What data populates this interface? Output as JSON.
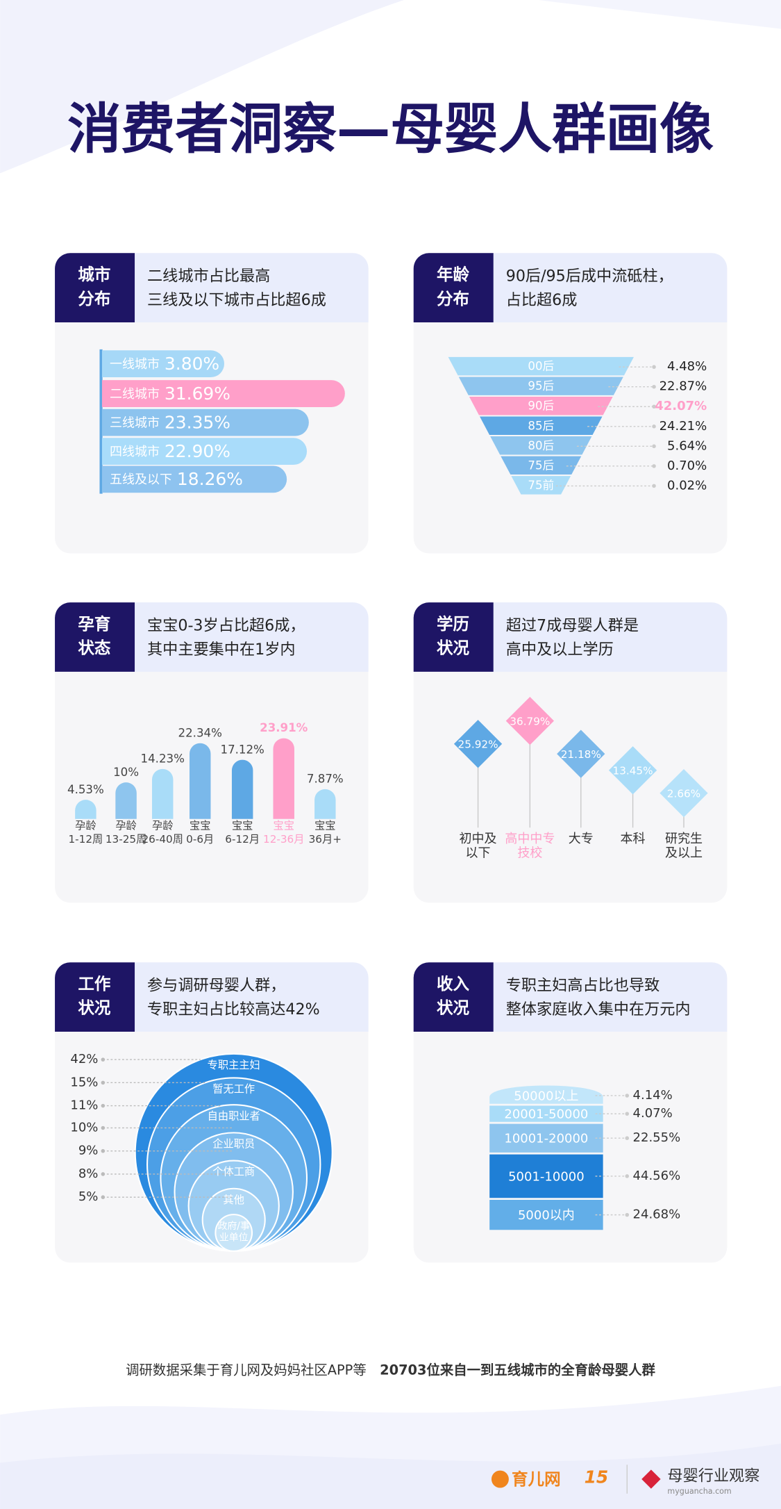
{
  "title": "消费者洞察—母婴人群画像",
  "chart_data": [
    {
      "type": "hbar",
      "tab": "城市\n分布",
      "headline": "二线城市占比最高\n三线及以下城市占比超6成",
      "categories": [
        "一线城市",
        "二线城市",
        "三线城市",
        "四线城市",
        "五线及以下"
      ],
      "values": [
        3.8,
        31.69,
        23.35,
        22.9,
        18.26
      ],
      "value_labels": [
        "3.80%",
        "31.69%",
        "23.35%",
        "22.90%",
        "18.26%"
      ],
      "colors": [
        "#a6d8f7",
        "#ff9fc9",
        "#8cc3ee",
        "#a9dcfa",
        "#8ec3ef"
      ]
    },
    {
      "type": "funnel",
      "tab": "年龄\n分布",
      "headline": "90后/95后成中流砥柱，\n占比超6成",
      "categories": [
        "00后",
        "95后",
        "90后",
        "85后",
        "80后",
        "75后",
        "75前"
      ],
      "values": [
        4.48,
        22.87,
        42.07,
        24.21,
        5.64,
        0.7,
        0.02
      ],
      "value_labels": [
        "4.48%",
        "22.87%",
        "42.07%",
        "24.21%",
        "5.64%",
        "0.70%",
        "0.02%"
      ],
      "colors": [
        "#a9dcf8",
        "#8ec5ee",
        "#ff9fc9",
        "#5ea8e4",
        "#8ec5ee",
        "#7ab8ea",
        "#a9dcf8"
      ],
      "highlight": 2
    },
    {
      "type": "bar",
      "tab": "孕育\n状态",
      "headline": "宝宝0-3岁占比超6成，\n其中主要集中在1岁内",
      "categories": [
        "孕龄\n1-12周",
        "孕龄\n13-25周",
        "孕龄\n26-40周",
        "宝宝\n0-6月",
        "宝宝\n6-12月",
        "宝宝\n12-36月",
        "宝宝\n36月+"
      ],
      "values": [
        4.53,
        10,
        14.23,
        22.34,
        17.12,
        23.91,
        7.87
      ],
      "value_labels": [
        "4.53%",
        "10%",
        "14.23%",
        "22.34%",
        "17.12%",
        "23.91%",
        "7.87%"
      ],
      "colors": [
        "#a9dcf8",
        "#8ec5ee",
        "#a9dcf8",
        "#7ab8ea",
        "#5ea8e4",
        "#ff9fc9",
        "#a9dcf8"
      ],
      "highlight": 5
    },
    {
      "type": "diamond",
      "tab": "学历\n状况",
      "headline": "超过7成母婴人群是\n高中及以上学历",
      "categories": [
        "初中及\n以下",
        "高中中专\n技校",
        "大专",
        "本科",
        "研究生\n及以上"
      ],
      "values": [
        25.92,
        36.79,
        21.18,
        13.45,
        2.66
      ],
      "value_labels": [
        "25.92%",
        "36.79%",
        "21.18%",
        "13.45%",
        "2.66%"
      ],
      "colors": [
        "#5ea8e4",
        "#ff9fc9",
        "#7ab8ea",
        "#a9dcf8",
        "#b6e2fa"
      ],
      "highlight": 1
    },
    {
      "type": "circles",
      "tab": "工作\n状况",
      "headline": "参与调研母婴人群，\n专职主妇占比较高达42%",
      "categories": [
        "专职主主妇",
        "暂无工作",
        "自由职业者",
        "企业职员",
        "个体工商",
        "其他",
        "政府/事\n业单位"
      ],
      "values": [
        42,
        15,
        11,
        10,
        9,
        8,
        5
      ],
      "value_labels": [
        "42%",
        "15%",
        "11%",
        "10%",
        "9%",
        "8%",
        "5%"
      ],
      "colors": [
        "#2a8ae0",
        "#4c9fe6",
        "#66afea",
        "#80bdee",
        "#98cbf2",
        "#b0d8f5",
        "#c8e5f8"
      ]
    },
    {
      "type": "stack",
      "tab": "收入\n状况",
      "headline": "专职主妇高占比也导致\n整体家庭收入集中在万元内",
      "categories": [
        "50000以上",
        "20001-50000",
        "10001-20000",
        "5001-10000",
        "5000以内"
      ],
      "values": [
        4.14,
        4.07,
        22.55,
        44.56,
        24.68
      ],
      "value_labels": [
        "4.14%",
        "4.07%",
        "22.55%",
        "44.56%",
        "24.68%"
      ],
      "colors": [
        "#c2e6fa",
        "#a9dcf8",
        "#8ec5ee",
        "#1f7fd6",
        "#62aee8"
      ]
    }
  ],
  "footer": {
    "note": "调研数据采集于育儿网及妈妈社区APP等",
    "highlight": "20703位来自一到五线城市的全育龄母婴人群"
  },
  "brands": {
    "left": "育儿网",
    "anniversary": "15",
    "right": "母婴行业观察",
    "url": "myguancha.com"
  }
}
